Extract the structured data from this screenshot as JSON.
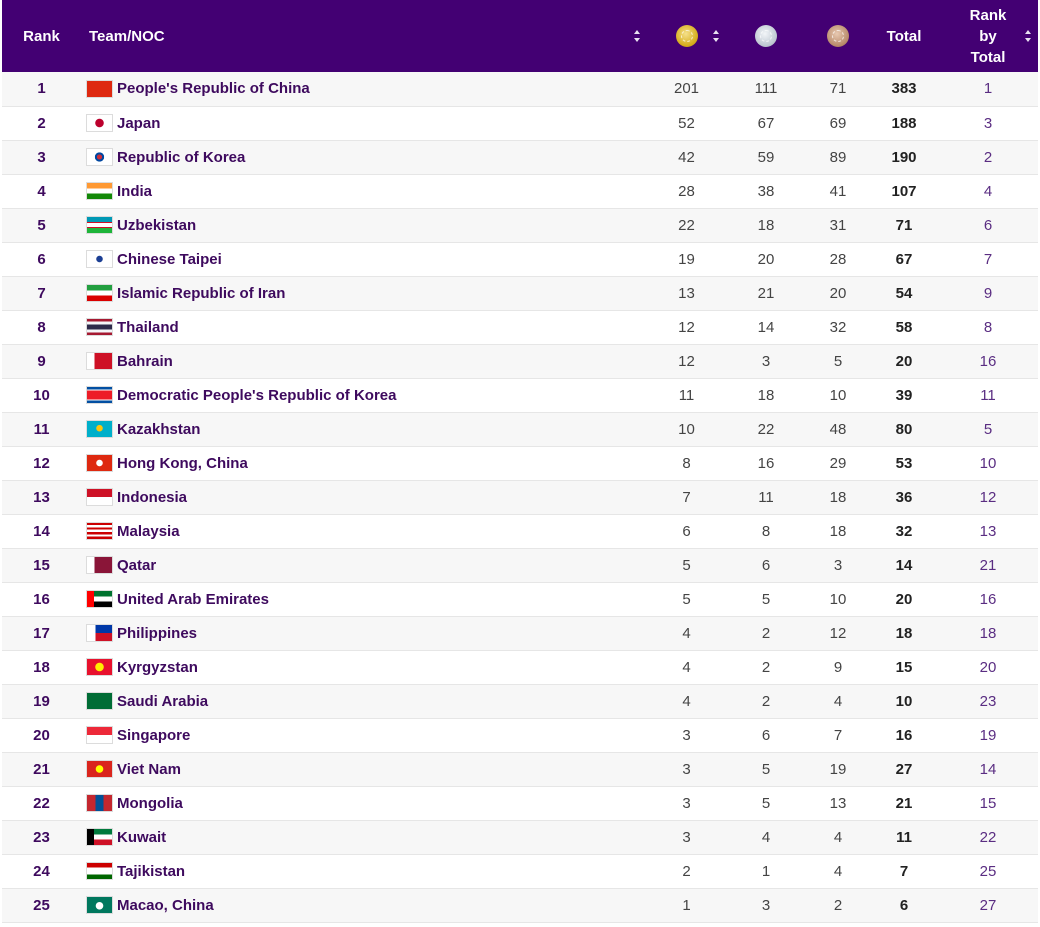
{
  "header": {
    "rank": "Rank",
    "team": "Team/NOC",
    "gold_icon": "gold-medal-icon",
    "silver_icon": "silver-medal-icon",
    "bronze_icon": "bronze-medal-icon",
    "total": "Total",
    "rank_by_total": [
      "Rank",
      "by",
      "Total"
    ]
  },
  "rows": [
    {
      "rank": "1",
      "team": "People's Republic of China",
      "flag": "flag-china-icon",
      "gold": "201",
      "silver": "111",
      "bronze": "71",
      "total": "383",
      "rank_by_total": "1"
    },
    {
      "rank": "2",
      "team": "Japan",
      "flag": "flag-japan-icon",
      "gold": "52",
      "silver": "67",
      "bronze": "69",
      "total": "188",
      "rank_by_total": "3"
    },
    {
      "rank": "3",
      "team": "Republic of Korea",
      "flag": "flag-korea-icon",
      "gold": "42",
      "silver": "59",
      "bronze": "89",
      "total": "190",
      "rank_by_total": "2"
    },
    {
      "rank": "4",
      "team": "India",
      "flag": "flag-india-icon",
      "gold": "28",
      "silver": "38",
      "bronze": "41",
      "total": "107",
      "rank_by_total": "4"
    },
    {
      "rank": "5",
      "team": "Uzbekistan",
      "flag": "flag-uzbekistan-icon",
      "gold": "22",
      "silver": "18",
      "bronze": "31",
      "total": "71",
      "rank_by_total": "6"
    },
    {
      "rank": "6",
      "team": "Chinese Taipei",
      "flag": "flag-chinese-taipei-icon",
      "gold": "19",
      "silver": "20",
      "bronze": "28",
      "total": "67",
      "rank_by_total": "7"
    },
    {
      "rank": "7",
      "team": "Islamic Republic of Iran",
      "flag": "flag-iran-icon",
      "gold": "13",
      "silver": "21",
      "bronze": "20",
      "total": "54",
      "rank_by_total": "9"
    },
    {
      "rank": "8",
      "team": "Thailand",
      "flag": "flag-thailand-icon",
      "gold": "12",
      "silver": "14",
      "bronze": "32",
      "total": "58",
      "rank_by_total": "8"
    },
    {
      "rank": "9",
      "team": "Bahrain",
      "flag": "flag-bahrain-icon",
      "gold": "12",
      "silver": "3",
      "bronze": "5",
      "total": "20",
      "rank_by_total": "16"
    },
    {
      "rank": "10",
      "team": "Democratic People's Republic of Korea",
      "flag": "flag-dpr-korea-icon",
      "gold": "11",
      "silver": "18",
      "bronze": "10",
      "total": "39",
      "rank_by_total": "11"
    },
    {
      "rank": "11",
      "team": "Kazakhstan",
      "flag": "flag-kazakhstan-icon",
      "gold": "10",
      "silver": "22",
      "bronze": "48",
      "total": "80",
      "rank_by_total": "5"
    },
    {
      "rank": "12",
      "team": "Hong Kong, China",
      "flag": "flag-hong-kong-icon",
      "gold": "8",
      "silver": "16",
      "bronze": "29",
      "total": "53",
      "rank_by_total": "10"
    },
    {
      "rank": "13",
      "team": "Indonesia",
      "flag": "flag-indonesia-icon",
      "gold": "7",
      "silver": "11",
      "bronze": "18",
      "total": "36",
      "rank_by_total": "12"
    },
    {
      "rank": "14",
      "team": "Malaysia",
      "flag": "flag-malaysia-icon",
      "gold": "6",
      "silver": "8",
      "bronze": "18",
      "total": "32",
      "rank_by_total": "13"
    },
    {
      "rank": "15",
      "team": "Qatar",
      "flag": "flag-qatar-icon",
      "gold": "5",
      "silver": "6",
      "bronze": "3",
      "total": "14",
      "rank_by_total": "21"
    },
    {
      "rank": "16",
      "team": "United Arab Emirates",
      "flag": "flag-uae-icon",
      "gold": "5",
      "silver": "5",
      "bronze": "10",
      "total": "20",
      "rank_by_total": "16"
    },
    {
      "rank": "17",
      "team": "Philippines",
      "flag": "flag-philippines-icon",
      "gold": "4",
      "silver": "2",
      "bronze": "12",
      "total": "18",
      "rank_by_total": "18"
    },
    {
      "rank": "18",
      "team": "Kyrgyzstan",
      "flag": "flag-kyrgyzstan-icon",
      "gold": "4",
      "silver": "2",
      "bronze": "9",
      "total": "15",
      "rank_by_total": "20"
    },
    {
      "rank": "19",
      "team": "Saudi Arabia",
      "flag": "flag-saudi-arabia-icon",
      "gold": "4",
      "silver": "2",
      "bronze": "4",
      "total": "10",
      "rank_by_total": "23"
    },
    {
      "rank": "20",
      "team": "Singapore",
      "flag": "flag-singapore-icon",
      "gold": "3",
      "silver": "6",
      "bronze": "7",
      "total": "16",
      "rank_by_total": "19"
    },
    {
      "rank": "21",
      "team": "Viet Nam",
      "flag": "flag-viet-nam-icon",
      "gold": "3",
      "silver": "5",
      "bronze": "19",
      "total": "27",
      "rank_by_total": "14"
    },
    {
      "rank": "22",
      "team": "Mongolia",
      "flag": "flag-mongolia-icon",
      "gold": "3",
      "silver": "5",
      "bronze": "13",
      "total": "21",
      "rank_by_total": "15"
    },
    {
      "rank": "23",
      "team": "Kuwait",
      "flag": "flag-kuwait-icon",
      "gold": "3",
      "silver": "4",
      "bronze": "4",
      "total": "11",
      "rank_by_total": "22"
    },
    {
      "rank": "24",
      "team": "Tajikistan",
      "flag": "flag-tajikistan-icon",
      "gold": "2",
      "silver": "1",
      "bronze": "4",
      "total": "7",
      "rank_by_total": "25"
    },
    {
      "rank": "25",
      "team": "Macao, China",
      "flag": "flag-macao-icon",
      "gold": "1",
      "silver": "3",
      "bronze": "2",
      "total": "6",
      "rank_by_total": "27"
    }
  ],
  "colors": {
    "header_bg": "#430073",
    "team_text": "#3e0a5e",
    "row_alt": "#f7f7f7"
  }
}
